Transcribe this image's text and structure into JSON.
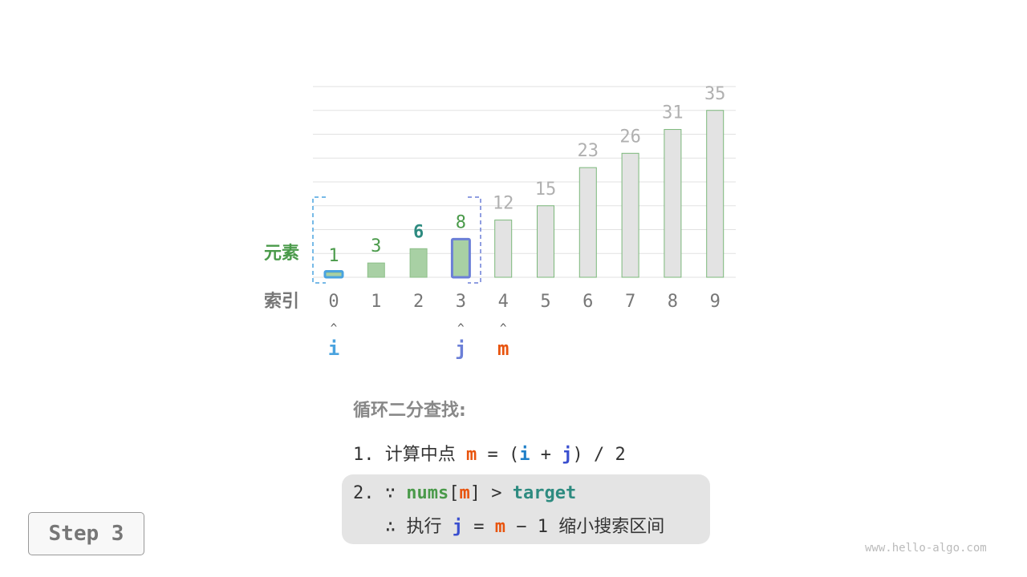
{
  "chart_data": {
    "type": "bar",
    "categories": [
      "0",
      "1",
      "2",
      "3",
      "4",
      "5",
      "6",
      "7",
      "8",
      "9"
    ],
    "values": [
      1,
      3,
      6,
      8,
      12,
      15,
      23,
      26,
      31,
      35
    ],
    "ylim": [
      0,
      40
    ],
    "grid": true,
    "row_labels": {
      "elements": "元素",
      "index": "索引"
    },
    "active_range": [
      0,
      3
    ],
    "highlight_index": 3,
    "target_label_index": 2,
    "colors": {
      "active": "#a8d0a4",
      "inactive": "#e3e3e3",
      "active_text": "#4a9a4a",
      "inactive_text": "#b0b0b0",
      "target_text": "#2e8b80",
      "i": "#4aa3df",
      "j": "#6b7fd7",
      "m": "#e8540e"
    }
  },
  "pointers": [
    {
      "name": "i",
      "index": 0
    },
    {
      "name": "j",
      "index": 3
    },
    {
      "name": "m",
      "index": 4
    }
  ],
  "pointer_arrow": "^",
  "steps": {
    "title": "循环二分查找:",
    "line1": {
      "num": "1.",
      "text": "计算中点",
      "m": "m",
      "eq": "=",
      "lp": "(",
      "i": "i",
      "plus": "+",
      "j": "j",
      "rp": ")",
      "div": "/",
      "two": "2"
    },
    "line2": {
      "num": "2.",
      "because": "∵",
      "nums": "nums",
      "lb": "[",
      "m": "m",
      "rb": "]",
      "gt": ">",
      "target": "target"
    },
    "line3": {
      "therefore": "∴",
      "exec": "执行",
      "j": "j",
      "eq": "=",
      "m": "m",
      "minus": "−",
      "one": "1",
      "text": "缩小搜索区间"
    }
  },
  "step_label": "Step 3",
  "watermark": "www.hello-algo.com"
}
